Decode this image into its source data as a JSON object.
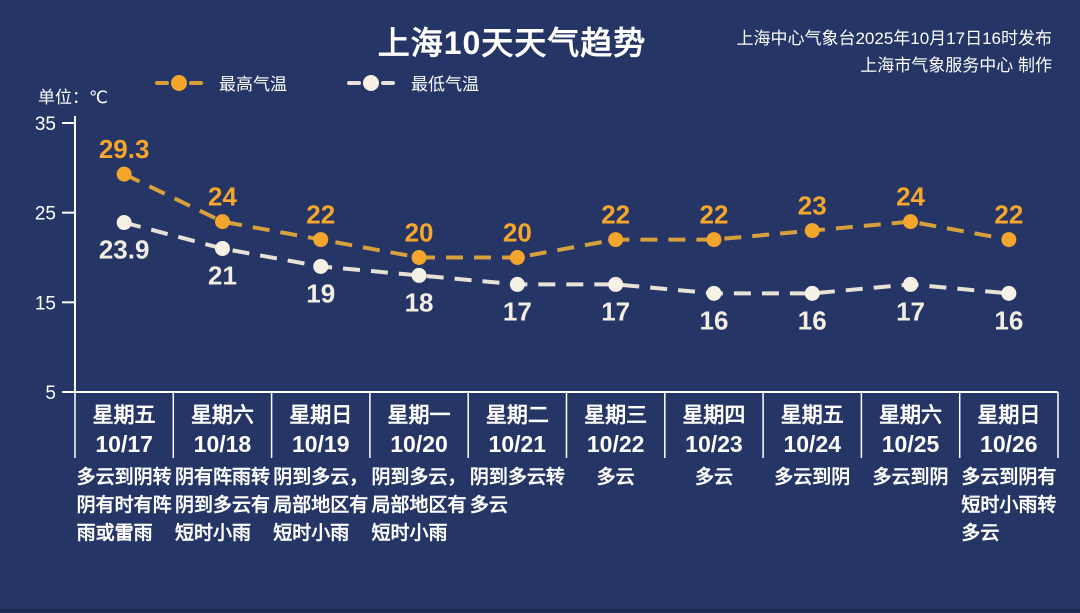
{
  "header": {
    "title": "上海10天天气趋势",
    "issued_line1": "上海中心气象台2025年10月17日16时发布",
    "issued_line2": "上海市气象服务中心 制作",
    "unit_label": "单位：℃"
  },
  "legend": {
    "high_label": "最高气温",
    "low_label": "最低气温"
  },
  "colors": {
    "background": "#243566",
    "axis": "#FFFFFF",
    "text": "#FFFFFF",
    "high_line": "#D7A03C",
    "high_dot": "#F3A52C",
    "high_label": "#F5A62B",
    "low_line": "#E8E2D6",
    "low_dot": "#F6F1E5",
    "low_label": "#F3EEE2"
  },
  "chart_data": {
    "type": "line",
    "title": "上海10天天气趋势",
    "ylabel": "℃",
    "ylim": [
      5,
      35
    ],
    "yticks": [
      35,
      25,
      15,
      5
    ],
    "grid": false,
    "legend_position": "top-left",
    "line_style": "dashed-with-dots",
    "categories": [
      {
        "weekday": "星期五",
        "date": "10/17",
        "weather": "多云到阴转\n阴有时有阵\n雨或雷雨"
      },
      {
        "weekday": "星期六",
        "date": "10/18",
        "weather": "阴有阵雨转\n阴到多云有\n短时小雨"
      },
      {
        "weekday": "星期日",
        "date": "10/19",
        "weather": "阴到多云，\n局部地区有\n短时小雨"
      },
      {
        "weekday": "星期一",
        "date": "10/20",
        "weather": "阴到多云，\n局部地区有\n短时小雨"
      },
      {
        "weekday": "星期二",
        "date": "10/21",
        "weather": "阴到多云转\n多云"
      },
      {
        "weekday": "星期三",
        "date": "10/22",
        "weather": "多云"
      },
      {
        "weekday": "星期四",
        "date": "10/23",
        "weather": "多云"
      },
      {
        "weekday": "星期五",
        "date": "10/24",
        "weather": "多云到阴"
      },
      {
        "weekday": "星期六",
        "date": "10/25",
        "weather": "多云到阴"
      },
      {
        "weekday": "星期日",
        "date": "10/26",
        "weather": "多云到阴有\n短时小雨转\n多云"
      }
    ],
    "series": [
      {
        "name": "最高气温",
        "values": [
          29.3,
          24,
          22,
          20,
          20,
          22,
          22,
          23,
          24,
          22
        ]
      },
      {
        "name": "最低气温",
        "values": [
          23.9,
          21,
          19,
          18,
          17,
          17,
          16,
          16,
          17,
          16
        ]
      }
    ]
  }
}
